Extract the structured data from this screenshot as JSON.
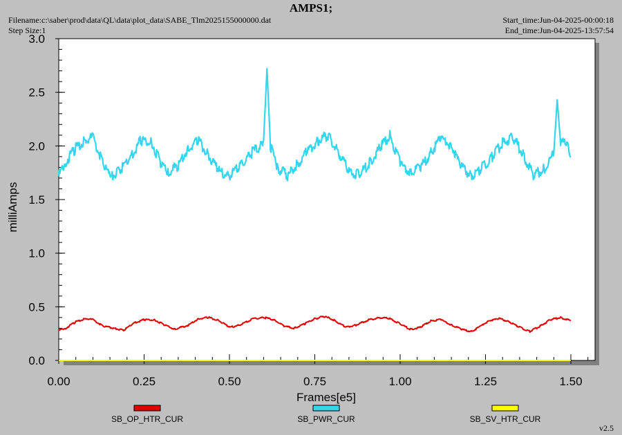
{
  "header": {
    "title": "AMPS1;",
    "filename": "Filename:c:\\saber\\prod\\data\\QL\\data\\plot_data\\SABE_Tlm2025155000000.dat",
    "step_size": "Step Size:1",
    "start_time": "Start_time:Jun-04-2025-00:00:18",
    "end_time": "End_time:Jun-04-2025-13:57:54"
  },
  "version": "v2.5",
  "chart_data": {
    "type": "line",
    "title": "AMPS1;",
    "xlabel": "Frames[e5]",
    "ylabel": "milliAmps",
    "xlim": [
      0,
      1.5
    ],
    "ylim": [
      0,
      3.0
    ],
    "x_ticks": [
      "0.00",
      "0.25",
      "0.50",
      "0.75",
      "1.00",
      "1.25",
      "1.50"
    ],
    "y_ticks": [
      "0.0",
      "0.5",
      "1.0",
      "1.5",
      "2.0",
      "2.5",
      "3.0"
    ],
    "grid": false,
    "legend_position": "bottom",
    "series": [
      {
        "name": "SB_OP_HTR_CUR",
        "color": "#e00000",
        "x": [
          0.0,
          0.02,
          0.05,
          0.08,
          0.1,
          0.13,
          0.16,
          0.19,
          0.22,
          0.25,
          0.28,
          0.31,
          0.34,
          0.38,
          0.41,
          0.44,
          0.47,
          0.5,
          0.53,
          0.57,
          0.6,
          0.63,
          0.66,
          0.69,
          0.72,
          0.75,
          0.78,
          0.81,
          0.84,
          0.87,
          0.91,
          0.94,
          0.97,
          1.0,
          1.03,
          1.06,
          1.09,
          1.12,
          1.15,
          1.18,
          1.21,
          1.23,
          1.26,
          1.29,
          1.32,
          1.35,
          1.38,
          1.41,
          1.44,
          1.47,
          1.5
        ],
        "values": [
          0.28,
          0.3,
          0.36,
          0.39,
          0.38,
          0.32,
          0.3,
          0.28,
          0.35,
          0.38,
          0.38,
          0.33,
          0.29,
          0.33,
          0.39,
          0.4,
          0.37,
          0.31,
          0.33,
          0.39,
          0.4,
          0.38,
          0.32,
          0.3,
          0.34,
          0.39,
          0.41,
          0.37,
          0.31,
          0.33,
          0.38,
          0.4,
          0.39,
          0.34,
          0.29,
          0.31,
          0.37,
          0.38,
          0.33,
          0.29,
          0.27,
          0.31,
          0.37,
          0.39,
          0.36,
          0.31,
          0.27,
          0.32,
          0.38,
          0.4,
          0.37
        ]
      },
      {
        "name": "SB_PWR_CUR",
        "color": "#33d6ee",
        "x": [
          0.0,
          0.02,
          0.05,
          0.08,
          0.1,
          0.13,
          0.15,
          0.18,
          0.21,
          0.24,
          0.27,
          0.3,
          0.32,
          0.35,
          0.38,
          0.41,
          0.44,
          0.47,
          0.5,
          0.53,
          0.56,
          0.59,
          0.6,
          0.61,
          0.62,
          0.64,
          0.67,
          0.7,
          0.73,
          0.76,
          0.79,
          0.82,
          0.85,
          0.88,
          0.91,
          0.94,
          0.97,
          1.0,
          1.03,
          1.06,
          1.09,
          1.12,
          1.15,
          1.18,
          1.21,
          1.24,
          1.27,
          1.3,
          1.33,
          1.36,
          1.39,
          1.42,
          1.45,
          1.46,
          1.47,
          1.49,
          1.5
        ],
        "values": [
          1.72,
          1.85,
          1.98,
          2.05,
          2.08,
          1.84,
          1.7,
          1.77,
          1.9,
          2.05,
          2.05,
          1.83,
          1.74,
          1.82,
          1.98,
          2.05,
          1.9,
          1.77,
          1.72,
          1.82,
          1.92,
          2.0,
          2.05,
          2.72,
          2.0,
          1.8,
          1.72,
          1.83,
          1.96,
          2.05,
          2.1,
          1.94,
          1.76,
          1.73,
          1.84,
          1.98,
          2.1,
          1.84,
          1.75,
          1.8,
          1.94,
          2.08,
          2.0,
          1.8,
          1.72,
          1.8,
          1.9,
          2.03,
          2.08,
          1.92,
          1.73,
          1.78,
          1.93,
          2.43,
          2.02,
          2.05,
          1.9
        ]
      },
      {
        "name": "SB_SV_HTR_CUR",
        "color": "#ffff00",
        "x": [
          0.0,
          1.5
        ],
        "values": [
          0.0,
          0.0
        ]
      }
    ]
  }
}
